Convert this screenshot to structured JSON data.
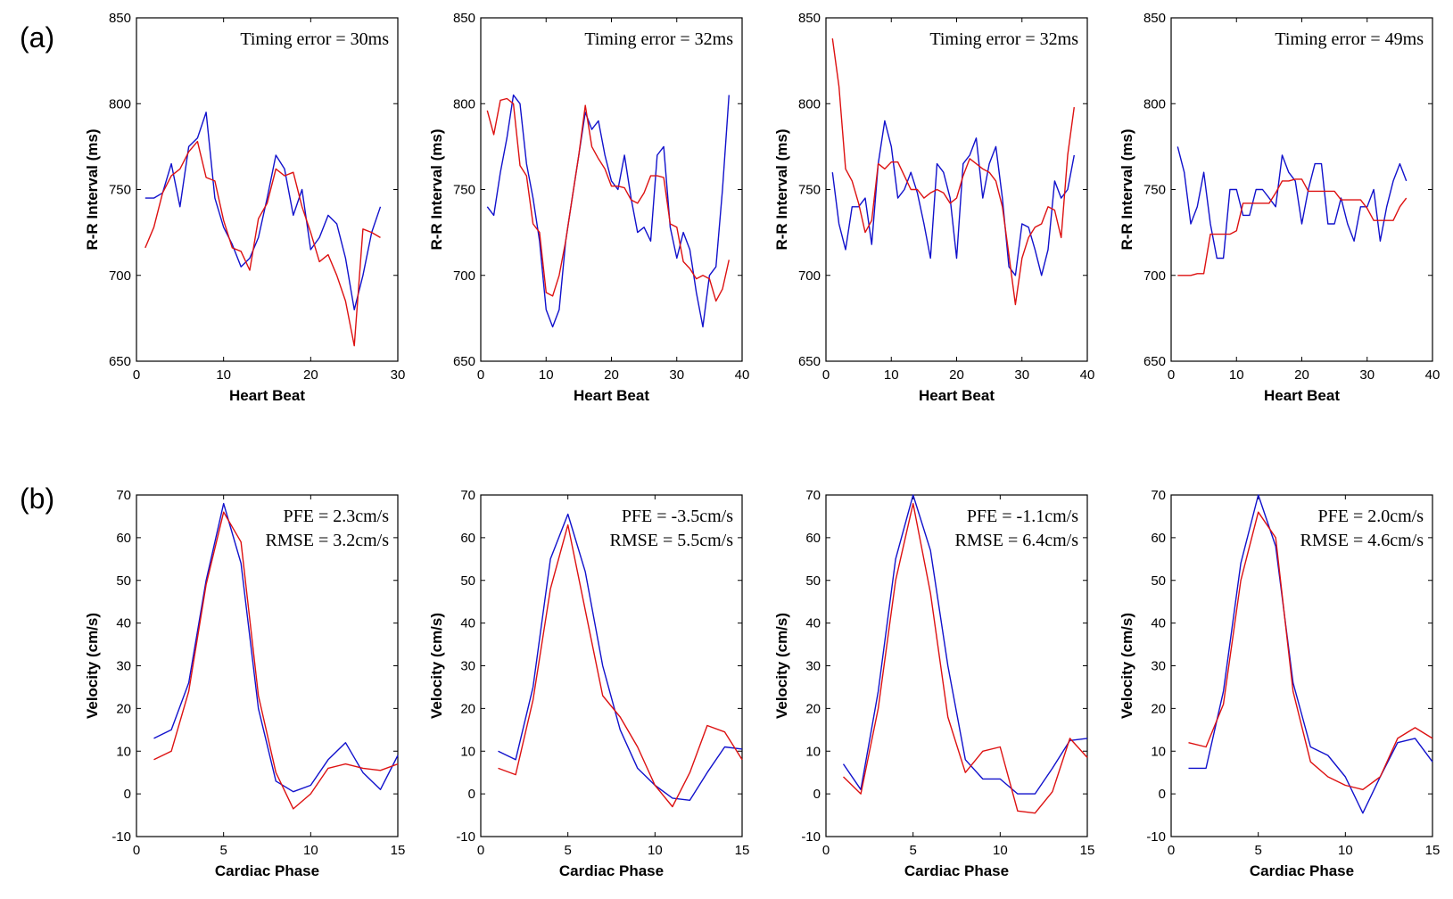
{
  "panel_labels": {
    "a": "(a)",
    "b": "(b)"
  },
  "colors": {
    "series_blue": "#1111cc",
    "series_red": "#dd1111",
    "axes": "#000000"
  },
  "chart_data": [
    {
      "id": "a1",
      "type": "line",
      "xlabel": "Heart Beat",
      "ylabel": "R-R Interval (ms)",
      "xlim": [
        0,
        30
      ],
      "ylim": [
        650,
        850
      ],
      "xticks": [
        0,
        10,
        20,
        30
      ],
      "yticks": [
        650,
        700,
        750,
        800,
        850
      ],
      "annotations": [
        "Timing error = 30ms"
      ],
      "series": [
        {
          "name": "blue",
          "x": [
            1,
            2,
            3,
            4,
            5,
            6,
            7,
            8,
            9,
            10,
            11,
            12,
            13,
            14,
            15,
            16,
            17,
            18,
            19,
            20,
            21,
            22,
            23,
            24,
            25,
            26,
            27,
            28
          ],
          "values": [
            745,
            745,
            748,
            765,
            740,
            775,
            780,
            795,
            745,
            728,
            718,
            705,
            710,
            722,
            745,
            770,
            762,
            735,
            750,
            715,
            722,
            735,
            730,
            710,
            680,
            700,
            725,
            740
          ]
        },
        {
          "name": "red",
          "x": [
            1,
            2,
            3,
            4,
            5,
            6,
            7,
            8,
            9,
            10,
            11,
            12,
            13,
            14,
            15,
            16,
            17,
            18,
            19,
            20,
            21,
            22,
            23,
            24,
            25,
            26,
            27,
            28
          ],
          "values": [
            716,
            728,
            748,
            758,
            762,
            772,
            778,
            757,
            755,
            732,
            716,
            714,
            703,
            733,
            742,
            762,
            758,
            760,
            740,
            725,
            708,
            712,
            700,
            685,
            659,
            727,
            725,
            722
          ]
        }
      ]
    },
    {
      "id": "a2",
      "type": "line",
      "xlabel": "Heart Beat",
      "ylabel": "R-R Interval (ms)",
      "xlim": [
        0,
        40
      ],
      "ylim": [
        650,
        850
      ],
      "xticks": [
        0,
        10,
        20,
        30,
        40
      ],
      "yticks": [
        650,
        700,
        750,
        800,
        850
      ],
      "annotations": [
        "Timing error = 32ms"
      ],
      "series": [
        {
          "name": "blue",
          "x": [
            1,
            2,
            3,
            4,
            5,
            6,
            7,
            8,
            9,
            10,
            11,
            12,
            13,
            14,
            15,
            16,
            17,
            18,
            19,
            20,
            21,
            22,
            23,
            24,
            25,
            26,
            27,
            28,
            29,
            30,
            31,
            32,
            33,
            34,
            35,
            36,
            37,
            38
          ],
          "values": [
            740,
            735,
            760,
            780,
            805,
            800,
            765,
            745,
            720,
            680,
            670,
            680,
            720,
            745,
            770,
            795,
            785,
            790,
            770,
            755,
            750,
            770,
            745,
            725,
            728,
            720,
            770,
            775,
            728,
            710,
            725,
            715,
            690,
            670,
            700,
            705,
            750,
            805
          ]
        },
        {
          "name": "red",
          "x": [
            1,
            2,
            3,
            4,
            5,
            6,
            7,
            8,
            9,
            10,
            11,
            12,
            13,
            14,
            15,
            16,
            17,
            18,
            19,
            20,
            21,
            22,
            23,
            24,
            25,
            26,
            27,
            28,
            29,
            30,
            31,
            32,
            33,
            34,
            35,
            36,
            37,
            38
          ],
          "values": [
            796,
            782,
            802,
            803,
            800,
            764,
            758,
            730,
            725,
            690,
            688,
            700,
            720,
            745,
            770,
            799,
            775,
            768,
            762,
            752,
            752,
            751,
            744,
            742,
            748,
            758,
            758,
            757,
            730,
            728,
            708,
            704,
            698,
            700,
            698,
            685,
            692,
            709
          ]
        }
      ]
    },
    {
      "id": "a3",
      "type": "line",
      "xlabel": "Heart Beat",
      "ylabel": "R-R Interval (ms)",
      "xlim": [
        0,
        40
      ],
      "ylim": [
        650,
        850
      ],
      "xticks": [
        0,
        10,
        20,
        30,
        40
      ],
      "yticks": [
        650,
        700,
        750,
        800,
        850
      ],
      "annotations": [
        "Timing error = 32ms"
      ],
      "series": [
        {
          "name": "blue",
          "x": [
            1,
            2,
            3,
            4,
            5,
            6,
            7,
            8,
            9,
            10,
            11,
            12,
            13,
            14,
            15,
            16,
            17,
            18,
            19,
            20,
            21,
            22,
            23,
            24,
            25,
            26,
            27,
            28,
            29,
            30,
            31,
            32,
            33,
            34,
            35,
            36,
            37,
            38
          ],
          "values": [
            760,
            730,
            715,
            740,
            740,
            745,
            718,
            765,
            790,
            775,
            745,
            750,
            760,
            748,
            730,
            710,
            765,
            760,
            745,
            710,
            765,
            770,
            780,
            745,
            765,
            775,
            745,
            705,
            700,
            730,
            728,
            715,
            700,
            715,
            755,
            745,
            750,
            770
          ]
        },
        {
          "name": "red",
          "x": [
            1,
            2,
            3,
            4,
            5,
            6,
            7,
            8,
            9,
            10,
            11,
            12,
            13,
            14,
            15,
            16,
            17,
            18,
            19,
            20,
            21,
            22,
            23,
            24,
            25,
            26,
            27,
            28,
            29,
            30,
            31,
            32,
            33,
            34,
            35,
            36,
            37,
            38
          ],
          "values": [
            838,
            810,
            762,
            755,
            742,
            725,
            732,
            765,
            762,
            766,
            766,
            758,
            750,
            750,
            745,
            748,
            750,
            748,
            742,
            745,
            758,
            768,
            765,
            762,
            760,
            755,
            740,
            712,
            683,
            710,
            722,
            728,
            730,
            740,
            738,
            722,
            770,
            798
          ]
        }
      ]
    },
    {
      "id": "a4",
      "type": "line",
      "xlabel": "Heart Beat",
      "ylabel": "R-R Interval (ms)",
      "xlim": [
        0,
        40
      ],
      "ylim": [
        650,
        850
      ],
      "xticks": [
        0,
        10,
        20,
        30,
        40
      ],
      "yticks": [
        650,
        700,
        750,
        800,
        850
      ],
      "annotations": [
        "Timing error = 49ms"
      ],
      "series": [
        {
          "name": "blue",
          "x": [
            1,
            2,
            3,
            4,
            5,
            6,
            7,
            8,
            9,
            10,
            11,
            12,
            13,
            14,
            15,
            16,
            17,
            18,
            19,
            20,
            21,
            22,
            23,
            24,
            25,
            26,
            27,
            28,
            29,
            30,
            31,
            32,
            33,
            34,
            35,
            36
          ],
          "values": [
            775,
            760,
            730,
            740,
            760,
            730,
            710,
            710,
            750,
            750,
            735,
            735,
            750,
            750,
            745,
            740,
            770,
            760,
            755,
            730,
            750,
            765,
            765,
            730,
            730,
            745,
            730,
            720,
            740,
            740,
            750,
            720,
            740,
            755,
            765,
            755
          ]
        },
        {
          "name": "red",
          "x": [
            1,
            2,
            3,
            4,
            5,
            6,
            7,
            8,
            9,
            10,
            11,
            12,
            13,
            14,
            15,
            16,
            17,
            18,
            19,
            20,
            21,
            22,
            23,
            24,
            25,
            26,
            27,
            28,
            29,
            30,
            31,
            32,
            33,
            34,
            35,
            36
          ],
          "values": [
            700,
            700,
            700,
            701,
            701,
            724,
            724,
            724,
            724,
            726,
            742,
            742,
            742,
            742,
            742,
            748,
            755,
            755,
            756,
            756,
            749,
            749,
            749,
            749,
            749,
            744,
            744,
            744,
            744,
            739,
            732,
            732,
            732,
            732,
            740,
            745
          ]
        }
      ]
    },
    {
      "id": "b1",
      "type": "line",
      "xlabel": "Cardiac Phase",
      "ylabel": "Velocity (cm/s)",
      "xlim": [
        0,
        15
      ],
      "ylim": [
        -10,
        70
      ],
      "xticks": [
        0,
        5,
        10,
        15
      ],
      "yticks": [
        -10,
        0,
        10,
        20,
        30,
        40,
        50,
        60,
        70
      ],
      "annotations": [
        "PFE = 2.3cm/s",
        "RMSE = 3.2cm/s"
      ],
      "series": [
        {
          "name": "blue",
          "x": [
            1,
            2,
            3,
            4,
            5,
            6,
            7,
            8,
            9,
            10,
            11,
            12,
            13,
            14,
            15
          ],
          "values": [
            13,
            15,
            26,
            50,
            68,
            54,
            20,
            3,
            0.5,
            2,
            8,
            12,
            5,
            1,
            9
          ]
        },
        {
          "name": "red",
          "x": [
            1,
            2,
            3,
            4,
            5,
            6,
            7,
            8,
            9,
            10,
            11,
            12,
            13,
            14,
            15
          ],
          "values": [
            8,
            10,
            24,
            49,
            66,
            59,
            23,
            5,
            -3.5,
            0,
            6,
            7,
            6,
            5.5,
            7
          ]
        }
      ]
    },
    {
      "id": "b2",
      "type": "line",
      "xlabel": "Cardiac Phase",
      "ylabel": "Velocity (cm/s)",
      "xlim": [
        0,
        15
      ],
      "ylim": [
        -10,
        70
      ],
      "xticks": [
        0,
        5,
        10,
        15
      ],
      "yticks": [
        -10,
        0,
        10,
        20,
        30,
        40,
        50,
        60,
        70
      ],
      "annotations": [
        "PFE = -3.5cm/s",
        "RMSE = 5.5cm/s"
      ],
      "series": [
        {
          "name": "blue",
          "x": [
            1,
            2,
            3,
            4,
            5,
            6,
            7,
            8,
            9,
            10,
            11,
            12,
            13,
            14,
            15
          ],
          "values": [
            10,
            8,
            25,
            55,
            65.5,
            52,
            30,
            15,
            6,
            2,
            -1,
            -1.5,
            5,
            11,
            10.5
          ]
        },
        {
          "name": "red",
          "x": [
            1,
            2,
            3,
            4,
            5,
            6,
            7,
            8,
            9,
            10,
            11,
            12,
            13,
            14,
            15
          ],
          "values": [
            6,
            4.5,
            22,
            48,
            63,
            43,
            23,
            18,
            11,
            2,
            -3,
            5,
            16,
            14.5,
            8
          ]
        }
      ]
    },
    {
      "id": "b3",
      "type": "line",
      "xlabel": "Cardiac Phase",
      "ylabel": "Velocity (cm/s)",
      "xlim": [
        0,
        15
      ],
      "ylim": [
        -10,
        70
      ],
      "xticks": [
        0,
        5,
        10,
        15
      ],
      "yticks": [
        -10,
        0,
        10,
        20,
        30,
        40,
        50,
        60,
        70
      ],
      "annotations": [
        "PFE = -1.1cm/s",
        "RMSE = 6.4cm/s"
      ],
      "series": [
        {
          "name": "blue",
          "x": [
            1,
            2,
            3,
            4,
            5,
            6,
            7,
            8,
            9,
            10,
            11,
            12,
            13,
            14,
            15
          ],
          "values": [
            7,
            1,
            24,
            55,
            70,
            57,
            30,
            8,
            3.5,
            3.5,
            0,
            0,
            6,
            12.5,
            13
          ]
        },
        {
          "name": "red",
          "x": [
            1,
            2,
            3,
            4,
            5,
            6,
            7,
            8,
            9,
            10,
            11,
            12,
            13,
            14,
            15
          ],
          "values": [
            4,
            0,
            20,
            50,
            68,
            47,
            18,
            5,
            10,
            11,
            -4,
            -4.5,
            0.5,
            13,
            8.5
          ]
        }
      ]
    },
    {
      "id": "b4",
      "type": "line",
      "xlabel": "Cardiac Phase",
      "ylabel": "Velocity (cm/s)",
      "xlim": [
        0,
        15
      ],
      "ylim": [
        -10,
        70
      ],
      "xticks": [
        0,
        5,
        10,
        15
      ],
      "yticks": [
        -10,
        0,
        10,
        20,
        30,
        40,
        50,
        60,
        70
      ],
      "annotations": [
        "PFE = 2.0cm/s",
        "RMSE = 4.6cm/s"
      ],
      "series": [
        {
          "name": "blue",
          "x": [
            1,
            2,
            3,
            4,
            5,
            6,
            7,
            8,
            9,
            10,
            11,
            12,
            13,
            14,
            15
          ],
          "values": [
            6,
            6,
            24,
            54,
            70,
            58,
            26,
            11,
            9,
            4,
            -4.5,
            4,
            12,
            13,
            7.5
          ]
        },
        {
          "name": "red",
          "x": [
            1,
            2,
            3,
            4,
            5,
            6,
            7,
            8,
            9,
            10,
            11,
            12,
            13,
            14,
            15
          ],
          "values": [
            12,
            11,
            21,
            50,
            66,
            60,
            24,
            7.5,
            4,
            2,
            1,
            4,
            13,
            15.5,
            13
          ]
        }
      ]
    }
  ]
}
